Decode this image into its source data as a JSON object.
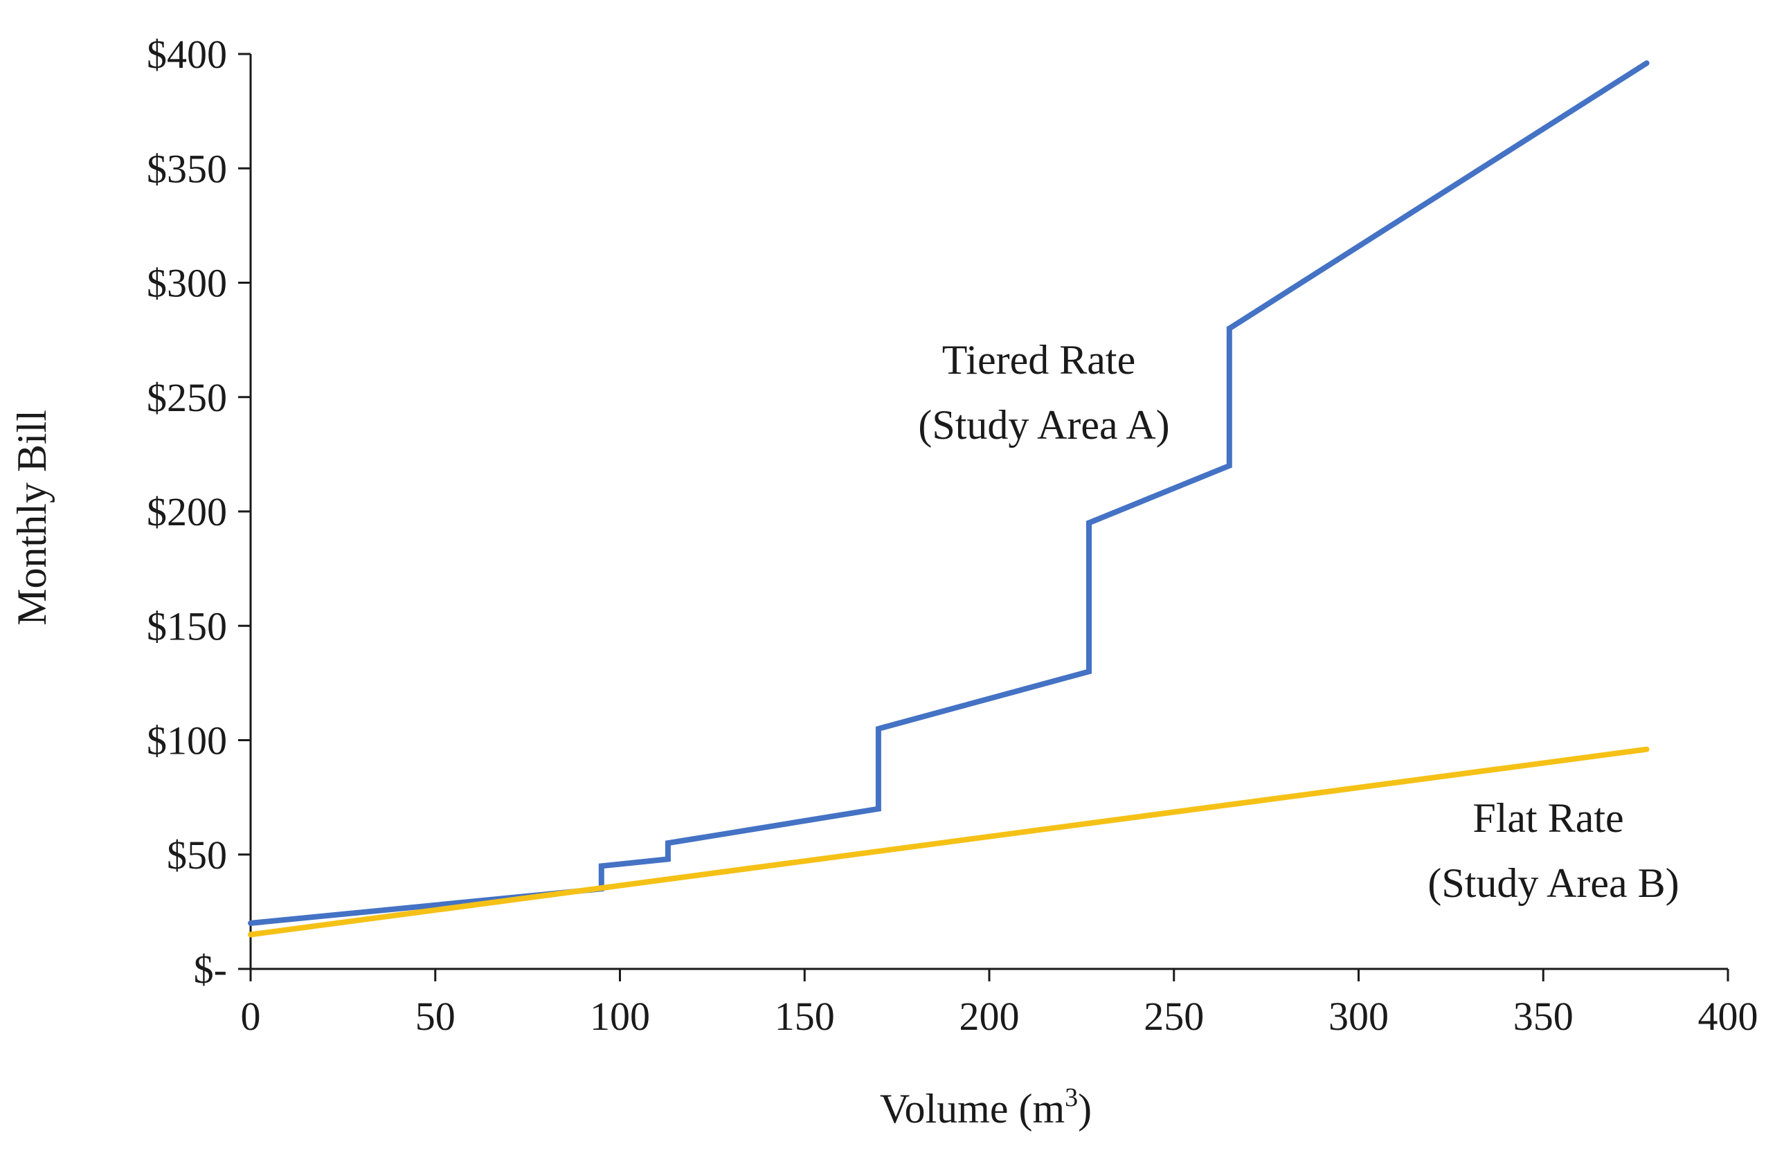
{
  "chart_data": {
    "type": "line",
    "title": "",
    "xlabel": "Volume (m",
    "xlabel_sup": "3",
    "xlabel_suffix": ")",
    "ylabel": "Monthly Bill",
    "xlim": [
      0,
      400
    ],
    "ylim": [
      0,
      400
    ],
    "x_ticks": [
      0,
      50,
      100,
      150,
      200,
      250,
      300,
      350,
      400
    ],
    "x_tick_labels": [
      "0",
      "50",
      "100",
      "150",
      "200",
      "250",
      "300",
      "350",
      "400"
    ],
    "y_ticks": [
      0,
      50,
      100,
      150,
      200,
      250,
      300,
      350,
      400
    ],
    "y_tick_labels": [
      "$-",
      "$50",
      "$100",
      "$150",
      "$200",
      "$250",
      "$300",
      "$350",
      "$400"
    ],
    "grid": false,
    "legend": "none",
    "series": [
      {
        "name": "Tiered Rate (Study Area A)",
        "color": "#4472C4",
        "points": [
          [
            0,
            20
          ],
          [
            95,
            35
          ],
          [
            95,
            45
          ],
          [
            113,
            48
          ],
          [
            113,
            55
          ],
          [
            170,
            70
          ],
          [
            170,
            105
          ],
          [
            227,
            130
          ],
          [
            227,
            195
          ],
          [
            265,
            220
          ],
          [
            265,
            280
          ],
          [
            378,
            396
          ]
        ]
      },
      {
        "name": "Flat Rate (Study Area B)",
        "color": "#F5C116",
        "points": [
          [
            0,
            15
          ],
          [
            378,
            96
          ]
        ]
      }
    ],
    "annotations": [
      {
        "series": 0,
        "lines": [
          "Tiered Rate",
          "(Study Area A)"
        ]
      },
      {
        "series": 1,
        "lines": [
          "Flat Rate",
          "(Study Area B)"
        ]
      }
    ]
  }
}
